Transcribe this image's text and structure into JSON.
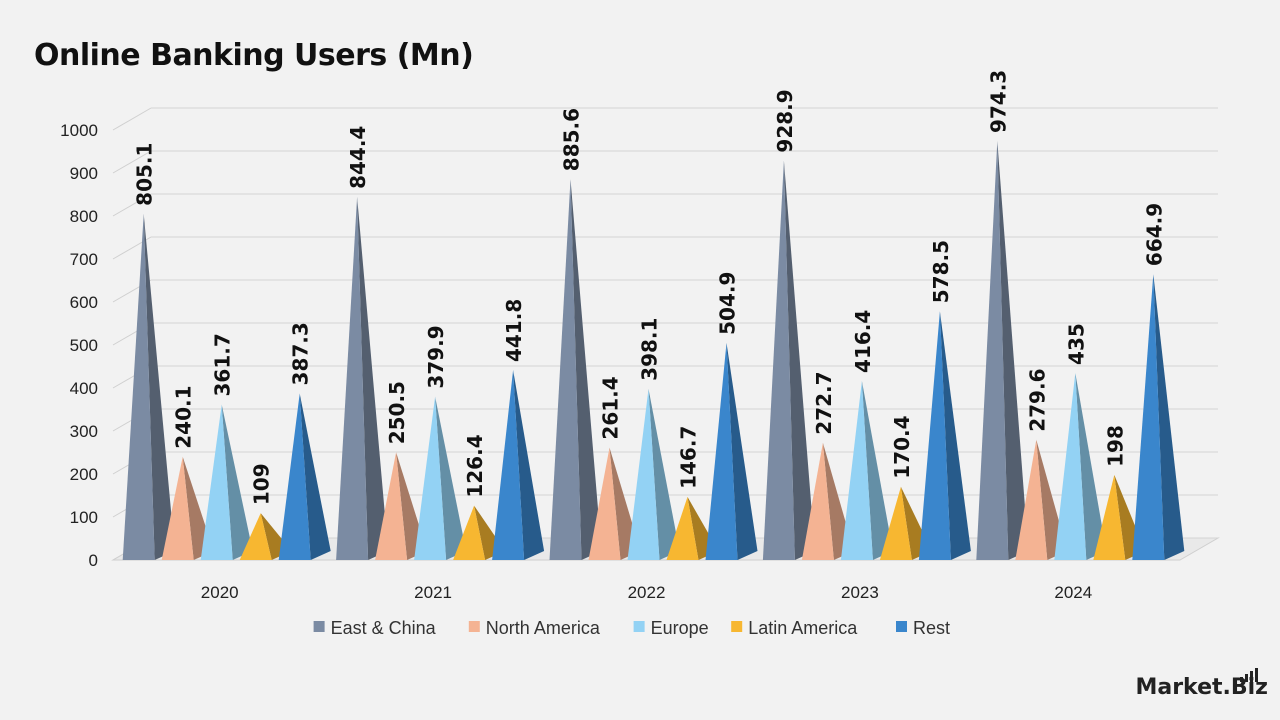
{
  "chart_data": {
    "type": "bar",
    "title": "Online Banking Users (Mn)",
    "categories": [
      "2020",
      "2021",
      "2022",
      "2023",
      "2024"
    ],
    "series": [
      {
        "name": "East & China",
        "color": "#7b8ba3",
        "values": [
          805.1,
          844.4,
          885.6,
          928.9,
          974.3
        ]
      },
      {
        "name": "North America",
        "color": "#f4b393",
        "values": [
          240.1,
          250.5,
          261.4,
          272.7,
          279.6
        ]
      },
      {
        "name": "Europe",
        "color": "#93d2f4",
        "values": [
          361.7,
          379.9,
          398.1,
          416.4,
          435
        ]
      },
      {
        "name": "Latin America",
        "color": "#f7b731",
        "values": [
          109,
          126.4,
          146.7,
          170.4,
          198
        ]
      },
      {
        "name": "Rest",
        "color": "#3a86cc",
        "values": [
          387.3,
          441.8,
          504.9,
          578.5,
          664.9
        ]
      }
    ],
    "ylim": [
      0,
      1000
    ],
    "yticks": [
      "0",
      "100",
      "200",
      "300",
      "400",
      "500",
      "600",
      "700",
      "800",
      "900",
      "1000"
    ],
    "grid": true,
    "legend_position": "bottom",
    "style": "3d-cone"
  },
  "brand": {
    "logo_text": "Market.Biz"
  }
}
